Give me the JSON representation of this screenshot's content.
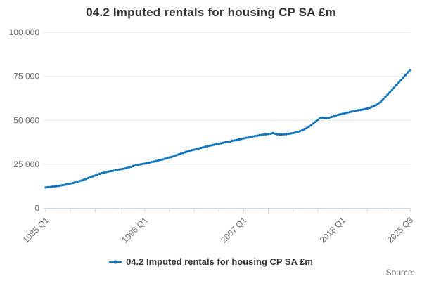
{
  "title": "04.2 Imputed rentals for housing CP SA £m",
  "legend": {
    "label": "04.2 Imputed rentals for housing CP SA £m"
  },
  "source_label": "Source:",
  "colors": {
    "series": "#1175bb",
    "grid": "#e6e6e6",
    "axis": "#ccd6eb",
    "muted_text": "#6e6e6e",
    "title_text": "#333333"
  },
  "chart_data": {
    "type": "line",
    "title": "04.2 Imputed rentals for housing CP SA £m",
    "unit": "£m",
    "frequency": "quarterly",
    "x_start": "1985 Q1",
    "x_end": "2025 Q3",
    "ylim": [
      0,
      100000
    ],
    "grid": "horizontal",
    "legend_position": "bottom",
    "marker": "dot",
    "minor_tick_interval_quarters": 11,
    "y_ticks": [
      {
        "v": 0,
        "label": "0"
      },
      {
        "v": 25000,
        "label": "25 000"
      },
      {
        "v": 50000,
        "label": "50 000"
      },
      {
        "v": 75000,
        "label": "75 000"
      },
      {
        "v": 100000,
        "label": "100 000"
      }
    ],
    "x_ticks": [
      {
        "q": 0,
        "label": "1985 Q1"
      },
      {
        "q": 44,
        "label": "1996 Q1"
      },
      {
        "q": 88,
        "label": "2007 Q1"
      },
      {
        "q": 132,
        "label": "2018 Q1"
      },
      {
        "q": 162,
        "label": "2025 Q3"
      }
    ],
    "series": [
      {
        "name": "04.2 Imputed rentals for housing CP SA £m",
        "values": [
          11800,
          12000,
          12050,
          12300,
          12400,
          12650,
          12750,
          13050,
          13200,
          13500,
          13700,
          14050,
          14300,
          14700,
          15000,
          15450,
          15800,
          16300,
          16700,
          17250,
          17700,
          18200,
          18600,
          19150,
          19600,
          19950,
          20250,
          20600,
          20900,
          21150,
          21300,
          21600,
          21800,
          22100,
          22300,
          22650,
          22900,
          23300,
          23600,
          24050,
          24400,
          24700,
          24900,
          25200,
          25400,
          25700,
          25900,
          26250,
          26500,
          26850,
          27150,
          27500,
          27800,
          28200,
          28500,
          28900,
          29200,
          29700,
          30100,
          30600,
          31000,
          31450,
          31800,
          32250,
          32600,
          33000,
          33300,
          33700,
          34000,
          34350,
          34600,
          35000,
          35300,
          35600,
          35800,
          36150,
          36400,
          36700,
          36900,
          37250,
          37500,
          37800,
          38000,
          38350,
          38600,
          38900,
          39100,
          39450,
          39700,
          40000,
          40200,
          40550,
          40800,
          41050,
          41200,
          41500,
          41700,
          41900,
          42000,
          42250,
          42400,
          42700,
          42400,
          42000,
          41900,
          41900,
          42000,
          42100,
          42300,
          42500,
          42700,
          43000,
          43300,
          43800,
          44300,
          44900,
          45600,
          46400,
          47200,
          48200,
          49200,
          50300,
          51200,
          51500,
          51300,
          51300,
          51500,
          51900,
          52300,
          52700,
          53100,
          53400,
          53700,
          54000,
          54300,
          54600,
          54900,
          55200,
          55400,
          55700,
          55900,
          56100,
          56400,
          56700,
          57100,
          57600,
          58100,
          58800,
          59600,
          60600,
          61800,
          63100,
          64500,
          65900,
          67300,
          68700,
          70100,
          71500,
          72900,
          74300,
          75700,
          77200,
          78600
        ]
      }
    ]
  }
}
